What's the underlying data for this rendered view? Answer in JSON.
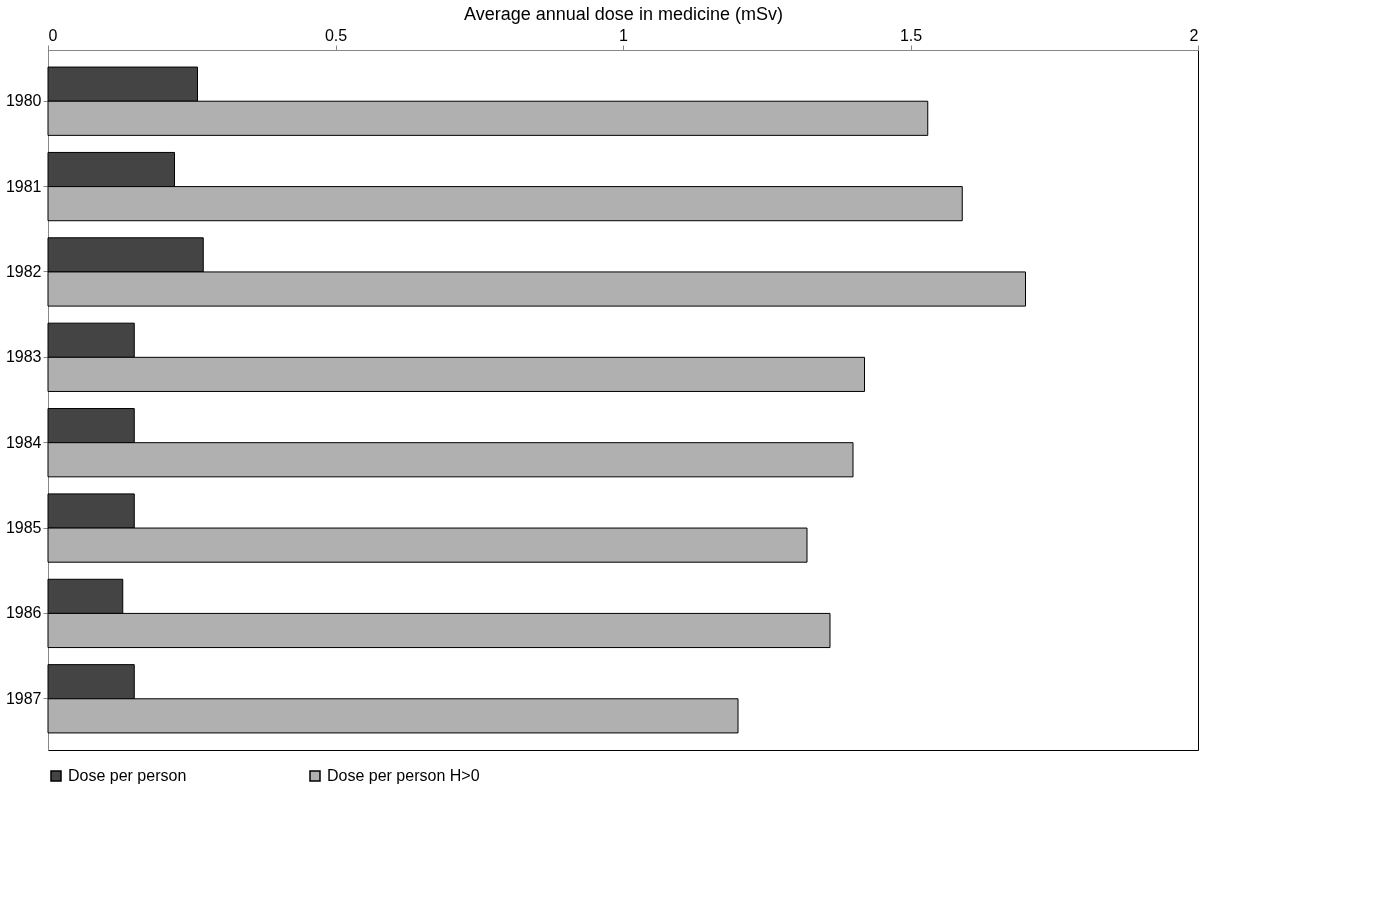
{
  "chart_data": {
    "type": "bar",
    "orientation": "horizontal",
    "xlabel": "Average annual dose in medicine (mSv)",
    "categories": [
      "1980",
      "1981",
      "1982",
      "1983",
      "1984",
      "1985",
      "1986",
      "1987"
    ],
    "series": [
      {
        "name": "Dose per person",
        "color": "#444444",
        "values": [
          0.26,
          0.22,
          0.27,
          0.15,
          0.15,
          0.15,
          0.13,
          0.15
        ]
      },
      {
        "name": "Dose per person H>0",
        "color": "#b0b0b0",
        "values": [
          1.53,
          1.59,
          1.7,
          1.42,
          1.4,
          1.32,
          1.36,
          1.2
        ]
      }
    ],
    "xlim": [
      0,
      2
    ],
    "xticks": [
      0,
      0.5,
      1,
      1.5,
      2
    ],
    "grid": false,
    "legend": "bottom"
  }
}
